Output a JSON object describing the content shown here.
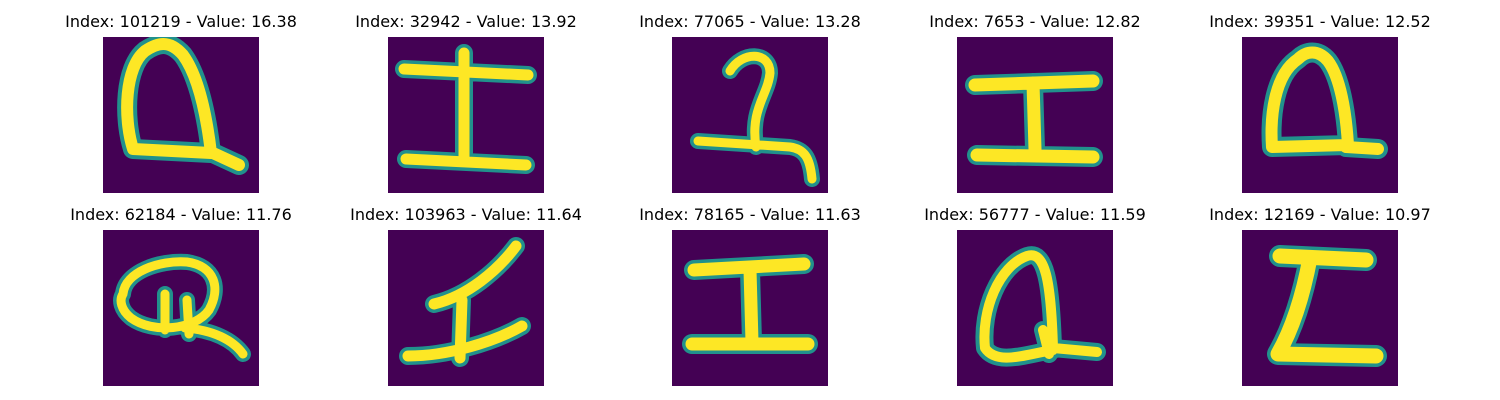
{
  "colors": {
    "background": "#440154",
    "stroke_core": "#fde725",
    "stroke_edge": "#21918c",
    "stroke_mid": "#5ec962"
  },
  "grid": [
    {
      "title": "Index: 101219 - Value: 16.38",
      "glyph": "Q"
    },
    {
      "title": "Index: 32942 - Value: 13.92",
      "glyph": "I-wide"
    },
    {
      "title": "Index: 77065 - Value: 13.28",
      "glyph": "Z-hook"
    },
    {
      "title": "Index: 7653 - Value: 12.82",
      "glyph": "I"
    },
    {
      "title": "Index: 39351 - Value: 12.52",
      "glyph": "Q"
    },
    {
      "title": "Index: 62184 - Value: 11.76",
      "glyph": "Q-loop"
    },
    {
      "title": "Index: 103963 - Value: 11.64",
      "glyph": "I-slant"
    },
    {
      "title": "Index: 78165 - Value: 11.63",
      "glyph": "I"
    },
    {
      "title": "Index: 56777 - Value: 11.59",
      "glyph": "Q-tall"
    },
    {
      "title": "Index: 12169 - Value: 10.97",
      "glyph": "Z"
    }
  ]
}
